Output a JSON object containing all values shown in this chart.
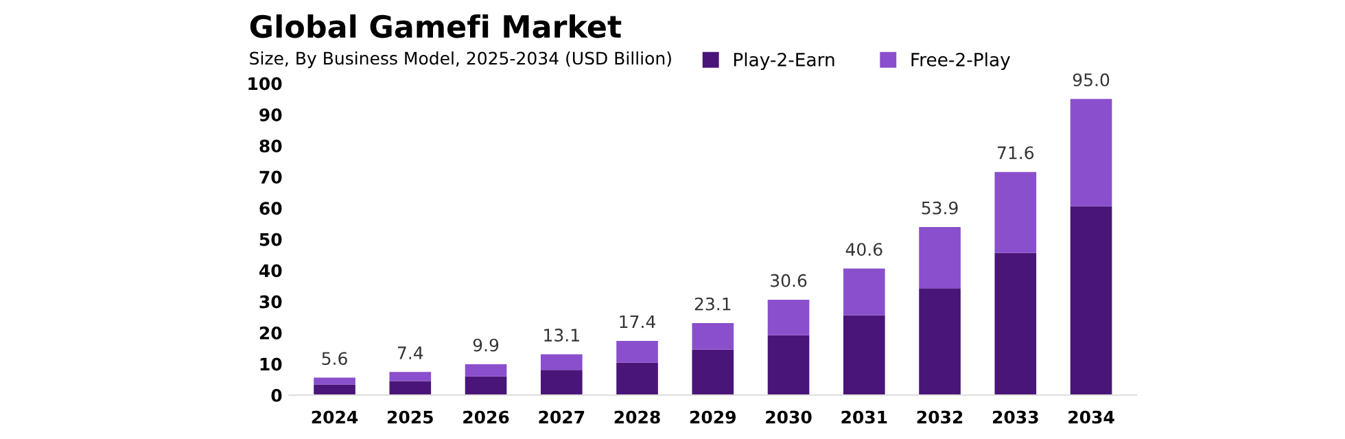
{
  "chart_data": {
    "type": "bar",
    "title": "Global Gamefi Market",
    "subtitle": "Size, By Business Model, 2025-2034 (USD Billion)",
    "categories": [
      "2024",
      "2025",
      "2026",
      "2027",
      "2028",
      "2029",
      "2030",
      "2031",
      "2032",
      "2033",
      "2034"
    ],
    "series": [
      {
        "name": "Play-2-Earn",
        "color": "#4a1578",
        "values": [
          3.4,
          4.5,
          6.0,
          8.1,
          10.4,
          14.6,
          19.2,
          25.6,
          34.3,
          45.6,
          60.6
        ]
      },
      {
        "name": "Free-2-Play",
        "color": "#8a4fcc",
        "values": [
          2.2,
          2.9,
          3.9,
          5.0,
          7.0,
          8.5,
          11.4,
          15.0,
          19.6,
          26.0,
          34.4
        ]
      }
    ],
    "stacked": true,
    "totals": [
      "5.6",
      "7.4",
      "9.9",
      "13.1",
      "17.4",
      "23.1",
      "30.6",
      "40.6",
      "53.9",
      "71.6",
      "95.0"
    ],
    "ylim": [
      0,
      100
    ],
    "yticks": [
      0,
      10,
      20,
      30,
      40,
      50,
      60,
      70,
      80,
      90,
      100
    ],
    "grid": false,
    "legend": "top right"
  }
}
